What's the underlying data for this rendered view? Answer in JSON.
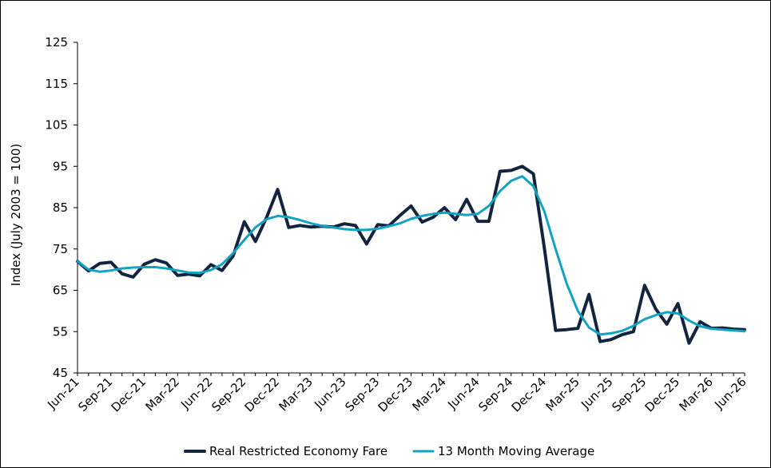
{
  "chart_data": {
    "type": "line",
    "title": "",
    "xlabel": "",
    "ylabel": "Index (July 2003 = 100)",
    "ylim": [
      45,
      125
    ],
    "y_ticks": [
      45,
      55,
      65,
      75,
      85,
      95,
      105,
      115,
      125
    ],
    "x_tick_labels": [
      "Jun-21",
      "Sep-21",
      "Dec-21",
      "Mar-22",
      "Jun-22",
      "Sep-22",
      "Dec-22",
      "Mar-23",
      "Jun-23",
      "Sep-23",
      "Dec-23",
      "Mar-24",
      "Jun-24",
      "Sep-24",
      "Dec-24",
      "Mar-25",
      "Jun-25",
      "Sep-25",
      "Dec-25",
      "Mar-26",
      "Jun-26"
    ],
    "grid": false,
    "legend_position": "bottom",
    "x": [
      "Jun-21",
      "Jul-21",
      "Aug-21",
      "Sep-21",
      "Oct-21",
      "Nov-21",
      "Dec-21",
      "Jan-22",
      "Feb-22",
      "Mar-22",
      "Apr-22",
      "May-22",
      "Jun-22",
      "Jul-22",
      "Aug-22",
      "Sep-22",
      "Oct-22",
      "Nov-22",
      "Dec-22",
      "Jan-23",
      "Feb-23",
      "Mar-23",
      "Apr-23",
      "May-23",
      "Jun-23",
      "Jul-23",
      "Aug-23",
      "Sep-23",
      "Oct-23",
      "Nov-23",
      "Dec-23",
      "Jan-24",
      "Feb-24",
      "Mar-24",
      "Apr-24",
      "May-24",
      "Jun-24",
      "Jul-24",
      "Aug-24",
      "Sep-24",
      "Oct-24",
      "Nov-24",
      "Dec-24",
      "Jan-25",
      "Feb-25",
      "Mar-25",
      "Apr-25",
      "May-25",
      "Jun-25",
      "Jul-25",
      "Aug-25",
      "Sep-25",
      "Oct-25",
      "Nov-25",
      "Dec-25",
      "Jan-26",
      "Feb-26",
      "Mar-26",
      "Apr-26",
      "May-26",
      "Jun-26"
    ],
    "series": [
      {
        "name": "Real Restricted Economy Fare",
        "color": "#13243f",
        "values": [
          72.0,
          69.7,
          71.5,
          71.8,
          69.0,
          68.2,
          71.3,
          72.4,
          71.6,
          68.6,
          68.9,
          68.5,
          71.2,
          69.8,
          73.3,
          81.6,
          76.8,
          82.6,
          89.4,
          80.2,
          80.7,
          80.3,
          80.5,
          80.3,
          81.1,
          80.7,
          76.2,
          80.9,
          80.6,
          83.1,
          85.4,
          81.5,
          82.7,
          85.0,
          82.1,
          87.0,
          81.7,
          81.7,
          93.8,
          94.0,
          95.0,
          93.2,
          75.0,
          55.3,
          55.5,
          55.8,
          64.0,
          52.6,
          53.1,
          54.3,
          55.0,
          66.2,
          60.5,
          56.8,
          61.8,
          52.2,
          57.4,
          55.8,
          55.9,
          55.6,
          55.5
        ]
      },
      {
        "name": "13 Month Moving Average",
        "color": "#12a3c2",
        "values": [
          72.0,
          70.0,
          69.5,
          69.8,
          70.3,
          70.5,
          70.6,
          70.6,
          70.3,
          69.8,
          69.3,
          69.2,
          69.9,
          71.3,
          74.0,
          77.2,
          80.2,
          82.2,
          83.0,
          82.7,
          82.0,
          81.2,
          80.6,
          80.2,
          79.8,
          79.6,
          79.6,
          79.9,
          80.5,
          81.2,
          82.3,
          83.0,
          83.5,
          83.8,
          83.5,
          83.2,
          83.5,
          85.4,
          89.0,
          91.5,
          92.6,
          90.2,
          84.0,
          75.0,
          66.6,
          60.0,
          56.0,
          54.3,
          54.6,
          55.2,
          56.4,
          58.0,
          59.0,
          59.7,
          59.4,
          57.7,
          56.3,
          55.7,
          55.5,
          55.3,
          55.1
        ]
      }
    ]
  }
}
